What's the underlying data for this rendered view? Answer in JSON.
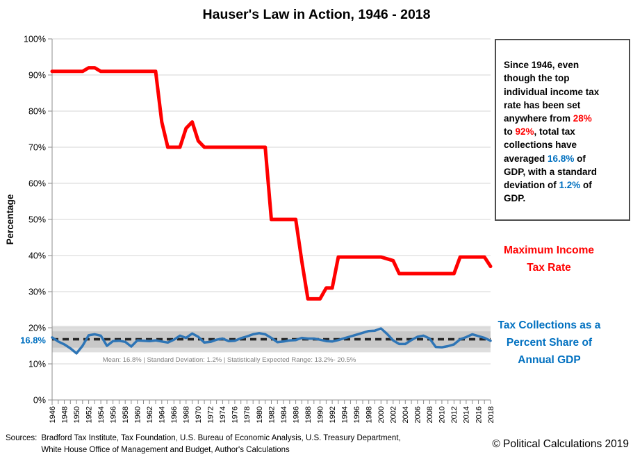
{
  "title": "Hauser's Law in Action, 1946 - 2018",
  "textbox": {
    "segments": [
      {
        "t": "Since 1946, even\nthough the top\nindividual income tax\nrate has been set\nanywhere from ",
        "c": "black"
      },
      {
        "t": "28%",
        "c": "red"
      },
      {
        "t": "\nto ",
        "c": "black"
      },
      {
        "t": "92%",
        "c": "red"
      },
      {
        "t": ", total tax\ncollections have\naveraged ",
        "c": "black"
      },
      {
        "t": "16.8%",
        "c": "blue"
      },
      {
        "t": " of\nGDP, with a standard\ndeviation of ",
        "c": "black"
      },
      {
        "t": "1.2%",
        "c": "blue"
      },
      {
        "t": " of\nGDP.",
        "c": "black"
      }
    ]
  },
  "labels": {
    "red_label": "Maximum Income\nTax Rate",
    "blue_label": "Tax Collections as a\nPercent Share of\nAnnual GDP"
  },
  "footer": {
    "sources_label": "Sources:",
    "sources_line1": "Bradford Tax Institute, Tax Foundation,  U.S. Bureau of Economic Analysis, U.S. Treasury Department,",
    "sources_line2": "White House Office of Management and Budget, Author's Calculations",
    "copyright": "© Political Calculations 2019"
  },
  "colors": {
    "red": "#FF0000",
    "blue_line": "#2E75B6",
    "blue_text": "#0070C0",
    "gridline": "#D6D6D6",
    "axis": "#8C8C8C",
    "band_outer": "#DEDEDE",
    "band_inner": "#C8C8C8",
    "mean_dash": "#262626",
    "annotation_gray": "#7F7F7F"
  },
  "chart_data": {
    "type": "line",
    "title": "Hauser's Law in Action, 1946 - 2018",
    "xlabel": "",
    "ylabel": "Percentage",
    "ylim": [
      0,
      100
    ],
    "ytick_step": 10,
    "ytick_suffix": "%",
    "x_label_step": 2,
    "grid": "horizontal",
    "legend_position": "right-inline-labels",
    "years": [
      1946,
      1947,
      1948,
      1949,
      1950,
      1951,
      1952,
      1953,
      1954,
      1955,
      1956,
      1957,
      1958,
      1959,
      1960,
      1961,
      1962,
      1963,
      1964,
      1965,
      1966,
      1967,
      1968,
      1969,
      1970,
      1971,
      1972,
      1973,
      1974,
      1975,
      1976,
      1977,
      1978,
      1979,
      1980,
      1981,
      1982,
      1983,
      1984,
      1985,
      1986,
      1987,
      1988,
      1989,
      1990,
      1991,
      1992,
      1993,
      1994,
      1995,
      1996,
      1997,
      1998,
      1999,
      2000,
      2001,
      2002,
      2003,
      2004,
      2005,
      2006,
      2007,
      2008,
      2009,
      2010,
      2011,
      2012,
      2013,
      2014,
      2015,
      2016,
      2017,
      2018
    ],
    "series": [
      {
        "name": "Maximum Income Tax Rate",
        "color": "#FF0000",
        "values": [
          91,
          91,
          91,
          91,
          91,
          91,
          92,
          92,
          91,
          91,
          91,
          91,
          91,
          91,
          91,
          91,
          91,
          91,
          77,
          70,
          70,
          70,
          75.25,
          77,
          71.75,
          70,
          70,
          70,
          70,
          70,
          70,
          70,
          70,
          70,
          70,
          70,
          50,
          50,
          50,
          50,
          50,
          38.5,
          28,
          28,
          28,
          31,
          31,
          39.6,
          39.6,
          39.6,
          39.6,
          39.6,
          39.6,
          39.6,
          39.6,
          39.1,
          38.6,
          35,
          35,
          35,
          35,
          35,
          35,
          35,
          35,
          35,
          35,
          39.6,
          39.6,
          39.6,
          39.6,
          39.6,
          37
        ]
      },
      {
        "name": "Tax Collections as a Percent Share of Annual GDP",
        "color": "#2E75B6",
        "values": [
          17.3,
          16.2,
          15.4,
          14.3,
          12.9,
          15.0,
          17.9,
          18.2,
          17.8,
          15.0,
          16.3,
          16.4,
          16.1,
          14.8,
          16.5,
          16.4,
          16.3,
          16.5,
          16.2,
          15.9,
          16.7,
          17.8,
          17.2,
          18.4,
          17.5,
          15.9,
          16.1,
          16.7,
          17.0,
          16.3,
          16.4,
          17.1,
          17.6,
          18.2,
          18.5,
          18.2,
          17.2,
          16.0,
          16.2,
          16.5,
          16.6,
          17.2,
          17.0,
          17.0,
          16.7,
          16.3,
          16.2,
          16.6,
          17.1,
          17.6,
          18.1,
          18.6,
          19.1,
          19.2,
          19.8,
          18.3,
          16.5,
          15.5,
          15.5,
          16.6,
          17.5,
          17.8,
          17.0,
          14.7,
          14.6,
          14.9,
          15.4,
          16.8,
          17.4,
          18.2,
          17.7,
          17.2,
          16.4
        ]
      }
    ],
    "mean_line": {
      "value": 16.8,
      "label": "16.8%"
    },
    "bands": {
      "outer": {
        "range": [
          13.2,
          20.5
        ]
      },
      "inner": {
        "range": [
          14.5,
          19.0
        ]
      }
    },
    "annotation": "Mean: 16.8% | Standard Deviation: 1.2% | Statistically Expected Range: 13.2%- 20.5%",
    "stats": {
      "mean": "16.8%",
      "standard_deviation": "1.2%",
      "expected_range": "13.2%- 20.5%"
    }
  }
}
